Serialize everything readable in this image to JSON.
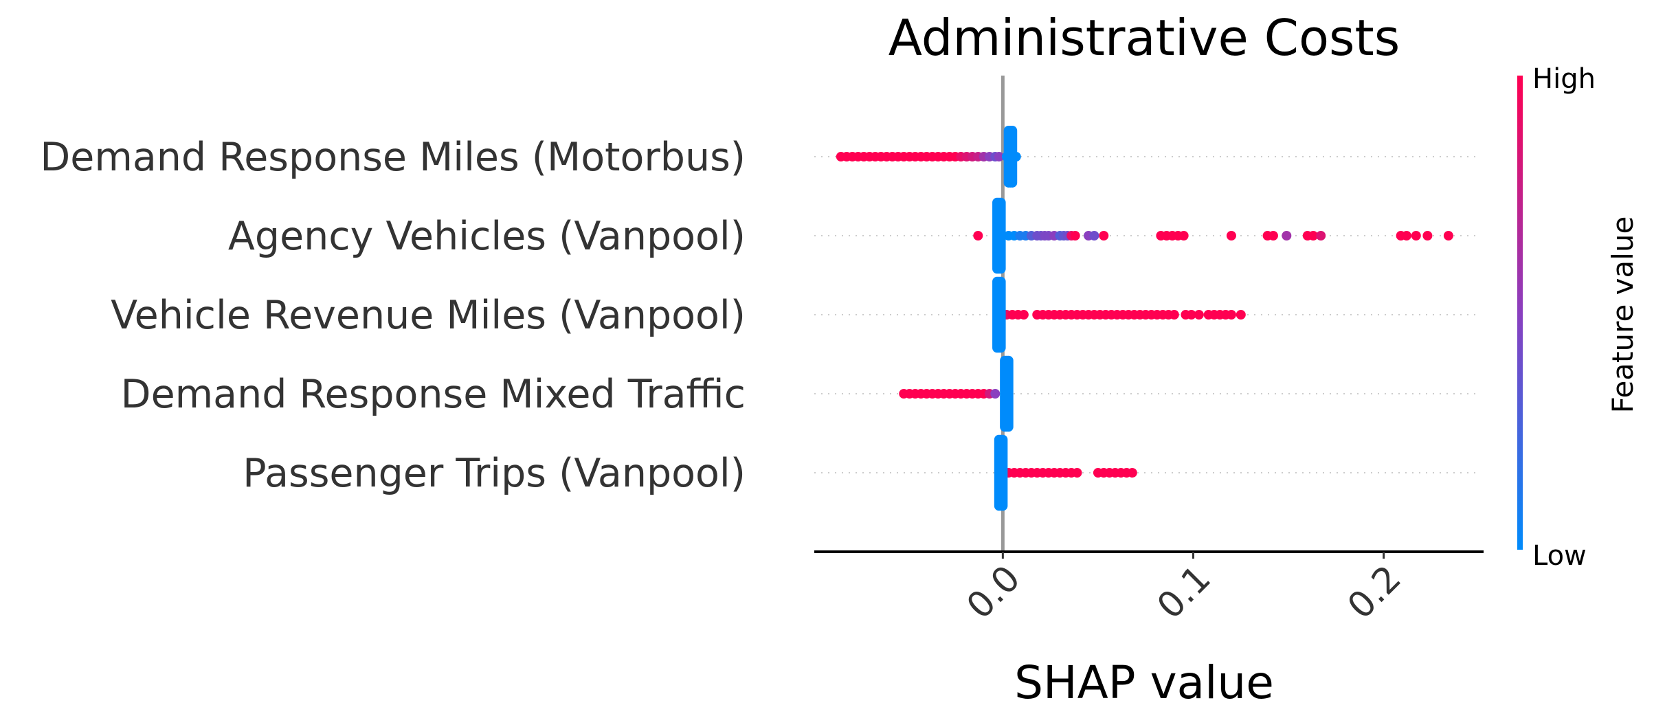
{
  "chart_data": {
    "type": "scatter",
    "title": "Administrative Costs",
    "xlabel": "SHAP value",
    "ylabel": "",
    "xlim": [
      -0.099,
      0.251
    ],
    "xticks": [
      0.0,
      0.1,
      0.2
    ],
    "xtick_labels": [
      "0.0",
      "0.1",
      "0.2"
    ],
    "zero_line": 0.0,
    "grid": false,
    "colorbar": {
      "label": "Feature value",
      "high_label": "High",
      "low_label": "Low",
      "low_color": "#008bfb",
      "mid_color": "#8a3fbf",
      "high_color": "#ff0051"
    },
    "features": [
      {
        "name": "Demand Response Miles (Motorbus)",
        "points": [
          {
            "x": -0.085,
            "v": 1.0
          },
          {
            "x": -0.082,
            "v": 1.0
          },
          {
            "x": -0.079,
            "v": 1.0
          },
          {
            "x": -0.076,
            "v": 1.0
          },
          {
            "x": -0.073,
            "v": 1.0
          },
          {
            "x": -0.07,
            "v": 1.0
          },
          {
            "x": -0.067,
            "v": 1.0
          },
          {
            "x": -0.064,
            "v": 1.0
          },
          {
            "x": -0.061,
            "v": 1.0
          },
          {
            "x": -0.058,
            "v": 1.0
          },
          {
            "x": -0.055,
            "v": 1.0
          },
          {
            "x": -0.052,
            "v": 1.0
          },
          {
            "x": -0.049,
            "v": 1.0
          },
          {
            "x": -0.046,
            "v": 1.0
          },
          {
            "x": -0.043,
            "v": 1.0
          },
          {
            "x": -0.04,
            "v": 1.0
          },
          {
            "x": -0.037,
            "v": 1.0
          },
          {
            "x": -0.034,
            "v": 1.0
          },
          {
            "x": -0.031,
            "v": 1.0
          },
          {
            "x": -0.028,
            "v": 1.0
          },
          {
            "x": -0.025,
            "v": 1.0
          },
          {
            "x": -0.022,
            "v": 0.9
          },
          {
            "x": -0.019,
            "v": 0.85
          },
          {
            "x": -0.016,
            "v": 0.8
          },
          {
            "x": -0.013,
            "v": 0.75
          },
          {
            "x": -0.01,
            "v": 0.6
          },
          {
            "x": -0.007,
            "v": 0.5
          },
          {
            "x": -0.004,
            "v": 0.4
          },
          {
            "x": -0.002,
            "v": 0.5
          },
          {
            "x": 0.002,
            "v": 0.0
          },
          {
            "x": 0.003,
            "v": 0.0
          },
          {
            "x": 0.004,
            "v": 0.0
          },
          {
            "x": 0.005,
            "v": 0.0
          },
          {
            "x": 0.006,
            "v": 0.0
          },
          {
            "x": 0.007,
            "v": 0.0
          }
        ],
        "stack": [
          {
            "x": 0.003,
            "v": 0.0,
            "half_width": 0.33
          },
          {
            "x": 0.004,
            "v": 0.0,
            "half_width": 0.33
          },
          {
            "x": 0.005,
            "v": 0.0,
            "half_width": 0.33
          }
        ]
      },
      {
        "name": "Agency Vehicles (Vanpool)",
        "points": [
          {
            "x": -0.013,
            "v": 1.0
          },
          {
            "x": 0.003,
            "v": 0.0
          },
          {
            "x": 0.006,
            "v": 0.0
          },
          {
            "x": 0.009,
            "v": 0.1
          },
          {
            "x": 0.012,
            "v": 0.1
          },
          {
            "x": 0.015,
            "v": 0.3
          },
          {
            "x": 0.018,
            "v": 0.4
          },
          {
            "x": 0.02,
            "v": 0.4
          },
          {
            "x": 0.022,
            "v": 0.45
          },
          {
            "x": 0.024,
            "v": 0.45
          },
          {
            "x": 0.027,
            "v": 0.5
          },
          {
            "x": 0.03,
            "v": 0.3
          },
          {
            "x": 0.032,
            "v": 0.35
          },
          {
            "x": 0.034,
            "v": 0.4
          },
          {
            "x": 0.036,
            "v": 0.9
          },
          {
            "x": 0.038,
            "v": 1.0
          },
          {
            "x": 0.045,
            "v": 0.5
          },
          {
            "x": 0.048,
            "v": 0.4
          },
          {
            "x": 0.053,
            "v": 1.0
          },
          {
            "x": 0.083,
            "v": 1.0
          },
          {
            "x": 0.086,
            "v": 1.0
          },
          {
            "x": 0.089,
            "v": 1.0
          },
          {
            "x": 0.092,
            "v": 1.0
          },
          {
            "x": 0.095,
            "v": 1.0
          },
          {
            "x": 0.12,
            "v": 1.0
          },
          {
            "x": 0.139,
            "v": 1.0
          },
          {
            "x": 0.142,
            "v": 1.0
          },
          {
            "x": 0.149,
            "v": 0.6
          },
          {
            "x": 0.16,
            "v": 1.0
          },
          {
            "x": 0.163,
            "v": 1.0
          },
          {
            "x": 0.167,
            "v": 0.85
          },
          {
            "x": 0.209,
            "v": 1.0
          },
          {
            "x": 0.212,
            "v": 1.0
          },
          {
            "x": 0.217,
            "v": 1.0
          },
          {
            "x": 0.223,
            "v": 1.0
          },
          {
            "x": 0.234,
            "v": 1.0
          }
        ],
        "stack": [
          {
            "x": -0.003,
            "v": 0.0,
            "half_width": 0.42
          },
          {
            "x": -0.002,
            "v": 0.0,
            "half_width": 0.42
          },
          {
            "x": -0.001,
            "v": 0.0,
            "half_width": 0.42
          }
        ]
      },
      {
        "name": "Vehicle Revenue Miles (Vanpool)",
        "points": [
          {
            "x": 0.002,
            "v": 0.9
          },
          {
            "x": 0.005,
            "v": 1.0
          },
          {
            "x": 0.008,
            "v": 1.0
          },
          {
            "x": 0.011,
            "v": 1.0
          },
          {
            "x": 0.018,
            "v": 1.0
          },
          {
            "x": 0.021,
            "v": 1.0
          },
          {
            "x": 0.024,
            "v": 1.0
          },
          {
            "x": 0.027,
            "v": 1.0
          },
          {
            "x": 0.03,
            "v": 1.0
          },
          {
            "x": 0.033,
            "v": 1.0
          },
          {
            "x": 0.036,
            "v": 1.0
          },
          {
            "x": 0.039,
            "v": 1.0
          },
          {
            "x": 0.042,
            "v": 1.0
          },
          {
            "x": 0.045,
            "v": 1.0
          },
          {
            "x": 0.048,
            "v": 1.0
          },
          {
            "x": 0.051,
            "v": 1.0
          },
          {
            "x": 0.054,
            "v": 1.0
          },
          {
            "x": 0.057,
            "v": 1.0
          },
          {
            "x": 0.06,
            "v": 1.0
          },
          {
            "x": 0.063,
            "v": 1.0
          },
          {
            "x": 0.066,
            "v": 1.0
          },
          {
            "x": 0.069,
            "v": 1.0
          },
          {
            "x": 0.072,
            "v": 1.0
          },
          {
            "x": 0.075,
            "v": 1.0
          },
          {
            "x": 0.078,
            "v": 1.0
          },
          {
            "x": 0.081,
            "v": 1.0
          },
          {
            "x": 0.084,
            "v": 1.0
          },
          {
            "x": 0.087,
            "v": 1.0
          },
          {
            "x": 0.09,
            "v": 1.0
          },
          {
            "x": 0.096,
            "v": 1.0
          },
          {
            "x": 0.099,
            "v": 1.0
          },
          {
            "x": 0.103,
            "v": 1.0
          },
          {
            "x": 0.108,
            "v": 1.0
          },
          {
            "x": 0.111,
            "v": 1.0
          },
          {
            "x": 0.114,
            "v": 1.0
          },
          {
            "x": 0.117,
            "v": 1.0
          },
          {
            "x": 0.12,
            "v": 1.0
          },
          {
            "x": 0.125,
            "v": 1.0
          }
        ],
        "stack": [
          {
            "x": -0.003,
            "v": 0.0,
            "half_width": 0.42
          },
          {
            "x": -0.002,
            "v": 0.0,
            "half_width": 0.42
          },
          {
            "x": -0.001,
            "v": 0.0,
            "half_width": 0.42
          }
        ]
      },
      {
        "name": "Demand Response Mixed Traffic",
        "points": [
          {
            "x": -0.052,
            "v": 1.0
          },
          {
            "x": -0.049,
            "v": 1.0
          },
          {
            "x": -0.046,
            "v": 1.0
          },
          {
            "x": -0.043,
            "v": 1.0
          },
          {
            "x": -0.04,
            "v": 1.0
          },
          {
            "x": -0.037,
            "v": 1.0
          },
          {
            "x": -0.034,
            "v": 1.0
          },
          {
            "x": -0.031,
            "v": 1.0
          },
          {
            "x": -0.028,
            "v": 1.0
          },
          {
            "x": -0.025,
            "v": 1.0
          },
          {
            "x": -0.022,
            "v": 1.0
          },
          {
            "x": -0.019,
            "v": 1.0
          },
          {
            "x": -0.016,
            "v": 1.0
          },
          {
            "x": -0.013,
            "v": 1.0
          },
          {
            "x": -0.01,
            "v": 1.0
          },
          {
            "x": -0.007,
            "v": 0.8
          },
          {
            "x": -0.004,
            "v": 0.5
          }
        ],
        "stack": [
          {
            "x": 0.001,
            "v": 0.0,
            "half_width": 0.42
          },
          {
            "x": 0.002,
            "v": 0.0,
            "half_width": 0.42
          },
          {
            "x": 0.003,
            "v": 0.0,
            "half_width": 0.42
          }
        ]
      },
      {
        "name": "Passenger Trips (Vanpool)",
        "points": [
          {
            "x": 0.003,
            "v": 1.0
          },
          {
            "x": 0.006,
            "v": 1.0
          },
          {
            "x": 0.009,
            "v": 1.0
          },
          {
            "x": 0.012,
            "v": 1.0
          },
          {
            "x": 0.015,
            "v": 1.0
          },
          {
            "x": 0.018,
            "v": 1.0
          },
          {
            "x": 0.021,
            "v": 1.0
          },
          {
            "x": 0.024,
            "v": 1.0
          },
          {
            "x": 0.027,
            "v": 1.0
          },
          {
            "x": 0.03,
            "v": 1.0
          },
          {
            "x": 0.033,
            "v": 1.0
          },
          {
            "x": 0.036,
            "v": 1.0
          },
          {
            "x": 0.039,
            "v": 1.0
          },
          {
            "x": 0.05,
            "v": 1.0
          },
          {
            "x": 0.053,
            "v": 1.0
          },
          {
            "x": 0.056,
            "v": 1.0
          },
          {
            "x": 0.059,
            "v": 1.0
          },
          {
            "x": 0.062,
            "v": 1.0
          },
          {
            "x": 0.065,
            "v": 1.0
          },
          {
            "x": 0.068,
            "v": 1.0
          }
        ],
        "stack": [
          {
            "x": -0.002,
            "v": 0.0,
            "half_width": 0.42
          },
          {
            "x": -0.001,
            "v": 0.0,
            "half_width": 0.42
          },
          {
            "x": 0.0,
            "v": 0.0,
            "half_width": 0.42
          }
        ]
      }
    ]
  }
}
